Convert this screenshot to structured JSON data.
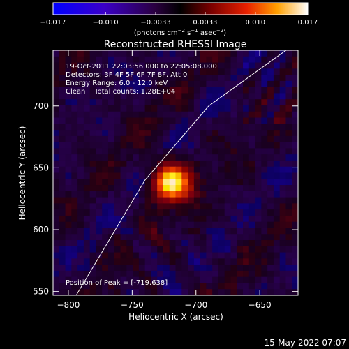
{
  "chart_data": {
    "type": "heatmap",
    "title": "Reconstructed RHESSI Image",
    "xlabel": "Heliocentric X (arcsec)",
    "ylabel": "Heliocentric Y (arcsec)",
    "xlim": [
      -812,
      -620
    ],
    "ylim": [
      547,
      745
    ],
    "xticks": [
      -800,
      -750,
      -700,
      -650
    ],
    "yticks": [
      550,
      600,
      650,
      700
    ],
    "xtick_labels": [
      "−800",
      "−750",
      "−700",
      "−650"
    ],
    "ytick_labels": [
      "550",
      "600",
      "650",
      "700"
    ],
    "colorbar": {
      "range": [
        -0.017,
        0.017
      ],
      "ticks": [
        -0.017,
        -0.01,
        -0.0033,
        0.0033,
        0.01,
        0.017
      ],
      "tick_labels": [
        "−0.017",
        "−0.010",
        "−0.0033",
        "0.0033",
        "0.010",
        "0.017"
      ],
      "unit_pre": "(photons cm",
      "unit_e1": "−2",
      "unit_mid": " s",
      "unit_e2": "−1",
      "unit_mid2": " asec",
      "unit_e3": "−2",
      "unit_post": ")"
    },
    "source": {
      "x": -719,
      "y": 638,
      "peak_value": 0.017
    },
    "limb_curve": [
      [
        -795,
        545
      ],
      [
        -740,
        640
      ],
      [
        -690,
        700
      ],
      [
        -620,
        752
      ]
    ],
    "annotations": [
      "19-Oct-2011 22:03:56.000 to 22:05:08.000",
      "Detectors: 3F 4F 5F 6F 7F 8F, Att 0",
      "Energy Range: 6.0 - 12.0 keV",
      "Clean    Total counts: 1.28E+04"
    ],
    "peak_label": "Position of Peak = [-719,638]",
    "colors": {
      "background": "#000000",
      "text": "#ffffff",
      "limb": "#ffffff"
    }
  },
  "timestamp": "15-May-2022 07:07"
}
